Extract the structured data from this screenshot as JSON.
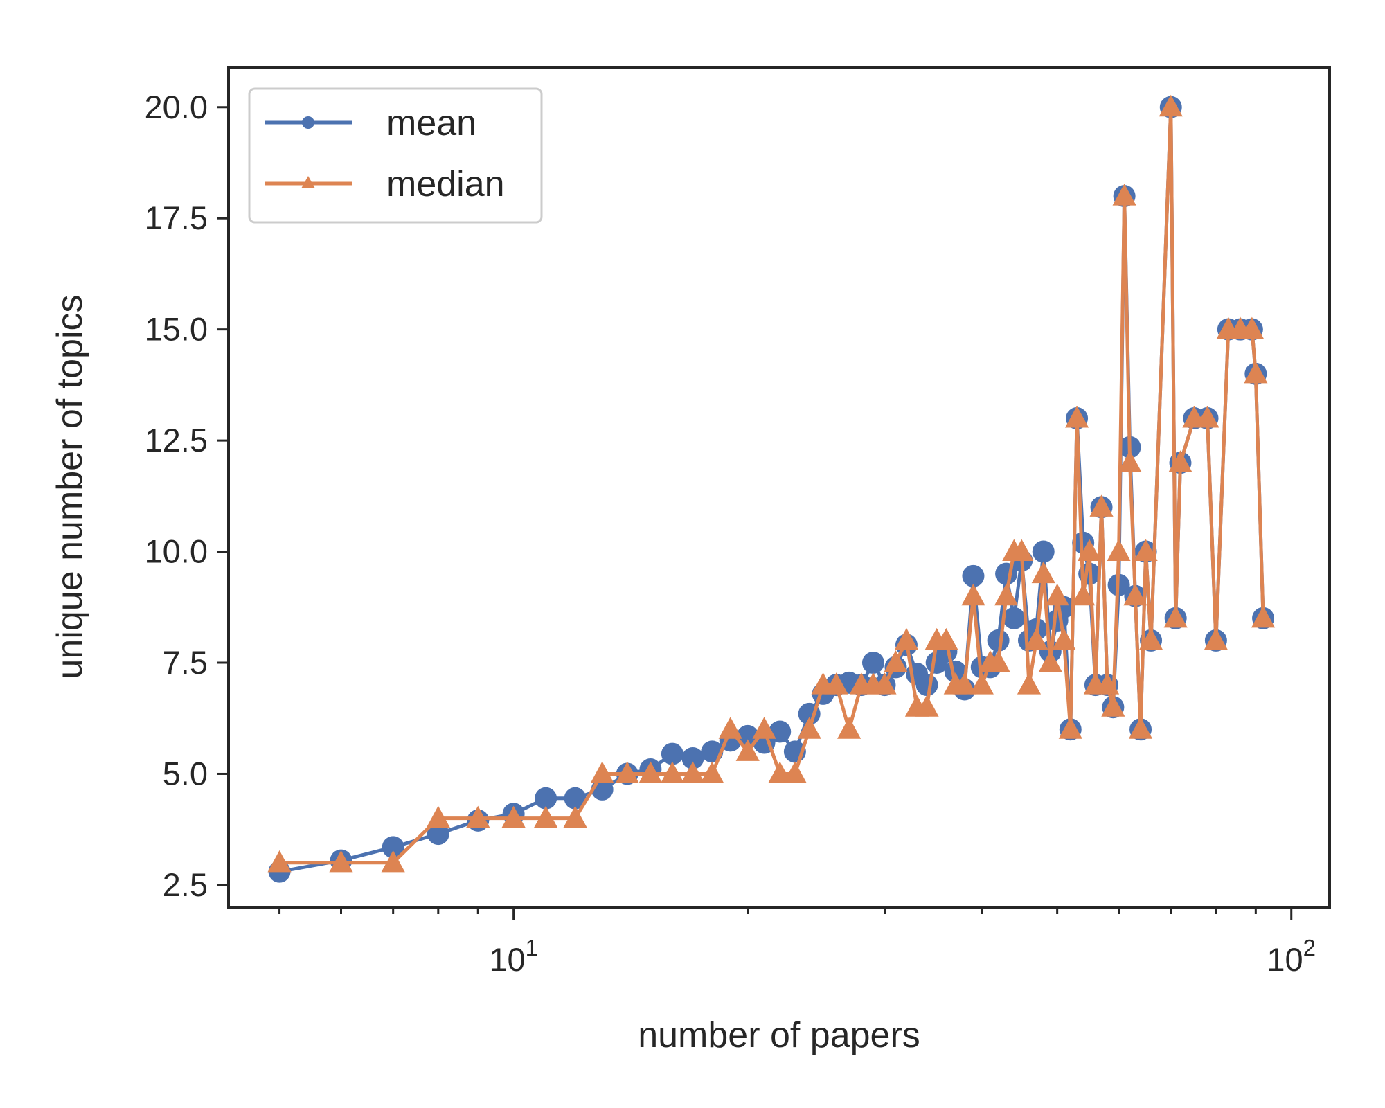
{
  "chart_data": {
    "type": "line",
    "xlabel": "number of papers",
    "ylabel": "unique number of topics",
    "xscale": "log",
    "xlim": [
      4.3,
      112
    ],
    "ylim": [
      2.0,
      20.9
    ],
    "x_ticks": [
      {
        "base": "10",
        "exp": "1",
        "value": 10
      },
      {
        "base": "10",
        "exp": "2",
        "value": 100
      }
    ],
    "y_ticks": [
      {
        "label": "2.5",
        "value": 2.5
      },
      {
        "label": "5.0",
        "value": 5.0
      },
      {
        "label": "7.5",
        "value": 7.5
      },
      {
        "label": "10.0",
        "value": 10.0
      },
      {
        "label": "12.5",
        "value": 12.5
      },
      {
        "label": "15.0",
        "value": 15.0
      },
      {
        "label": "17.5",
        "value": 17.5
      },
      {
        "label": "20.0",
        "value": 20.0
      }
    ],
    "grid": false,
    "legend_position": "top-left",
    "colors": {
      "mean": "#4c72b0",
      "median": "#dd8452",
      "axes": "#262626"
    },
    "series": [
      {
        "name": "mean",
        "marker": "circle",
        "points": [
          [
            5,
            2.8
          ],
          [
            6,
            3.05
          ],
          [
            7,
            3.35
          ],
          [
            8,
            3.65
          ],
          [
            9,
            3.95
          ],
          [
            10,
            4.1
          ],
          [
            11,
            4.45
          ],
          [
            12,
            4.45
          ],
          [
            13,
            4.65
          ],
          [
            14,
            5.0
          ],
          [
            15,
            5.1
          ],
          [
            16,
            5.45
          ],
          [
            17,
            5.35
          ],
          [
            18,
            5.5
          ],
          [
            19,
            5.75
          ],
          [
            20,
            5.85
          ],
          [
            21,
            5.7
          ],
          [
            22,
            5.95
          ],
          [
            23,
            5.5
          ],
          [
            24,
            6.35
          ],
          [
            25,
            6.8
          ],
          [
            26,
            7.0
          ],
          [
            27,
            7.05
          ],
          [
            28,
            7.0
          ],
          [
            29,
            7.5
          ],
          [
            30,
            7.0
          ],
          [
            31,
            7.4
          ],
          [
            32,
            7.9
          ],
          [
            33,
            7.25
          ],
          [
            34,
            7.0
          ],
          [
            35,
            7.5
          ],
          [
            36,
            7.75
          ],
          [
            37,
            7.3
          ],
          [
            38,
            6.9
          ],
          [
            39,
            9.45
          ],
          [
            40,
            7.4
          ],
          [
            41,
            7.4
          ],
          [
            42,
            8.0
          ],
          [
            43,
            9.5
          ],
          [
            44,
            8.5
          ],
          [
            45,
            9.8
          ],
          [
            46,
            8.0
          ],
          [
            47,
            8.25
          ],
          [
            48,
            10.0
          ],
          [
            49,
            7.75
          ],
          [
            50,
            8.45
          ],
          [
            51,
            8.75
          ],
          [
            52,
            6.0
          ],
          [
            53,
            13.0
          ],
          [
            54,
            10.2
          ],
          [
            55,
            9.5
          ],
          [
            56,
            7.0
          ],
          [
            57,
            11.0
          ],
          [
            58,
            7.0
          ],
          [
            59,
            6.5
          ],
          [
            60,
            9.25
          ],
          [
            61,
            18.0
          ],
          [
            62,
            12.35
          ],
          [
            63,
            9.0
          ],
          [
            64,
            6.0
          ],
          [
            65,
            10.0
          ],
          [
            66,
            8.0
          ],
          [
            70,
            20.0
          ],
          [
            71,
            8.5
          ],
          [
            72,
            12.0
          ],
          [
            75,
            13.0
          ],
          [
            78,
            13.0
          ],
          [
            80,
            8.0
          ],
          [
            83,
            15.0
          ],
          [
            86,
            15.0
          ],
          [
            89,
            15.0
          ],
          [
            90,
            14.0
          ],
          [
            92,
            8.5
          ]
        ]
      },
      {
        "name": "median",
        "marker": "triangle",
        "points": [
          [
            5,
            3.0
          ],
          [
            6,
            3.0
          ],
          [
            7,
            3.0
          ],
          [
            8,
            4.0
          ],
          [
            9,
            4.0
          ],
          [
            10,
            4.0
          ],
          [
            11,
            4.0
          ],
          [
            12,
            4.0
          ],
          [
            13,
            5.0
          ],
          [
            14,
            5.0
          ],
          [
            15,
            5.0
          ],
          [
            16,
            5.0
          ],
          [
            17,
            5.0
          ],
          [
            18,
            5.0
          ],
          [
            19,
            6.0
          ],
          [
            20,
            5.5
          ],
          [
            21,
            6.0
          ],
          [
            22,
            5.0
          ],
          [
            23,
            5.0
          ],
          [
            24,
            6.0
          ],
          [
            25,
            7.0
          ],
          [
            26,
            7.0
          ],
          [
            27,
            6.0
          ],
          [
            28,
            7.0
          ],
          [
            29,
            7.0
          ],
          [
            30,
            7.0
          ],
          [
            31,
            7.5
          ],
          [
            32,
            8.0
          ],
          [
            33,
            6.5
          ],
          [
            34,
            6.5
          ],
          [
            35,
            8.0
          ],
          [
            36,
            8.0
          ],
          [
            37,
            7.0
          ],
          [
            38,
            7.0
          ],
          [
            39,
            9.0
          ],
          [
            40,
            7.0
          ],
          [
            41,
            7.5
          ],
          [
            42,
            7.5
          ],
          [
            43,
            9.0
          ],
          [
            44,
            10.0
          ],
          [
            45,
            10.0
          ],
          [
            46,
            7.0
          ],
          [
            47,
            8.0
          ],
          [
            48,
            9.5
          ],
          [
            49,
            7.5
          ],
          [
            50,
            9.0
          ],
          [
            51,
            8.0
          ],
          [
            52,
            6.0
          ],
          [
            53,
            13.0
          ],
          [
            54,
            9.0
          ],
          [
            55,
            10.0
          ],
          [
            56,
            7.0
          ],
          [
            57,
            11.0
          ],
          [
            58,
            7.0
          ],
          [
            59,
            6.5
          ],
          [
            60,
            10.0
          ],
          [
            61,
            18.0
          ],
          [
            62,
            12.0
          ],
          [
            63,
            9.0
          ],
          [
            64,
            6.0
          ],
          [
            65,
            10.0
          ],
          [
            66,
            8.0
          ],
          [
            70,
            20.0
          ],
          [
            71,
            8.5
          ],
          [
            72,
            12.0
          ],
          [
            75,
            13.0
          ],
          [
            78,
            13.0
          ],
          [
            80,
            8.0
          ],
          [
            83,
            15.0
          ],
          [
            86,
            15.0
          ],
          [
            89,
            15.0
          ],
          [
            90,
            14.0
          ],
          [
            92,
            8.5
          ]
        ]
      }
    ]
  }
}
